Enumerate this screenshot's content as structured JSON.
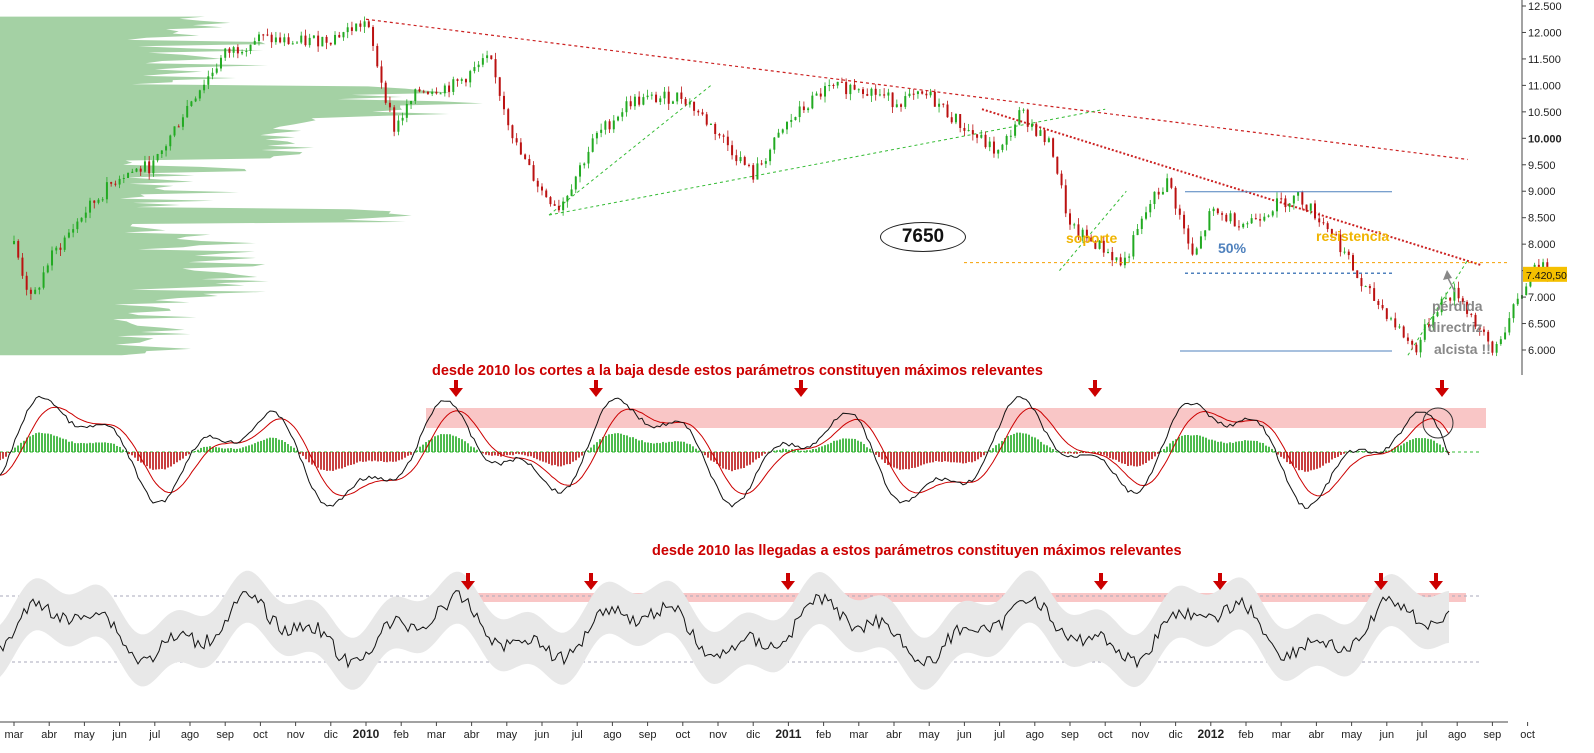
{
  "colors": {
    "price_up": "#22aa22",
    "price_down": "#bb1111",
    "volume_profile": "#9fcf9f",
    "trend_red": "#cc2222",
    "trend_green": "#33bb33",
    "support_orange": "#f5a000",
    "annotation_red": "#cc0000",
    "annotation_orange": "#f0b400",
    "annotation_blue": "#4f81bd",
    "annotation_gray": "#888888",
    "band_pink": "#f9c6c6",
    "osc_band_gray": "#e8e8e8",
    "last_price_box": "#f5c000"
  },
  "annotations": {
    "level_7650": "7650",
    "soporte": "soporte",
    "resistencia": "resistencia",
    "fib_50": "50%",
    "perdida_line1": "pérdida",
    "perdida_line2": "directriz",
    "perdida_line3": "alcista !!",
    "macd_note": "desde 2010 los cortes a la baja desde estos parámetros constituyen máximos relevantes",
    "rsi_note": "desde 2010 las llegadas a estos parámetros constituyen máximos relevantes"
  },
  "chart_data": [
    {
      "type": "candlestick",
      "panel": "price",
      "y_axis_ticks": [
        "12.500",
        "12.000",
        "11.500",
        "11.000",
        "10.500",
        "10.000",
        "9.500",
        "9.000",
        "8.500",
        "8.000",
        "7.500",
        "7.000",
        "6.500",
        "6.000"
      ],
      "y_tick_values": [
        12500,
        12000,
        11500,
        11000,
        10500,
        10000,
        9500,
        9000,
        8500,
        8000,
        7500,
        7000,
        6500,
        6000
      ],
      "highlight_tick": "10.000",
      "last_price_label": "7.420,50",
      "last_price": 7420.5,
      "support_level": 7650,
      "ylim": [
        5700,
        12700
      ],
      "x_axis_labels": [
        "mar",
        "abr",
        "may",
        "jun",
        "jul",
        "ago",
        "sep",
        "oct",
        "nov",
        "dic",
        "2010",
        "feb",
        "mar",
        "abr",
        "may",
        "jun",
        "jul",
        "ago",
        "sep",
        "oct",
        "nov",
        "dic",
        "2011",
        "feb",
        "mar",
        "abr",
        "may",
        "jun",
        "jul",
        "ago",
        "sep",
        "oct",
        "nov",
        "dic",
        "2012",
        "feb",
        "mar",
        "abr",
        "may",
        "jun",
        "jul",
        "ago",
        "sep",
        "oct"
      ],
      "year_labels": [
        "2010",
        "2011",
        "2012"
      ],
      "price_path_approx": [
        {
          "t": 0,
          "v": 8000
        },
        {
          "t": 0.5,
          "v": 6900
        },
        {
          "t": 1,
          "v": 7700
        },
        {
          "t": 2,
          "v": 8600
        },
        {
          "t": 3,
          "v": 9300
        },
        {
          "t": 4,
          "v": 9500
        },
        {
          "t": 5,
          "v": 10700
        },
        {
          "t": 6,
          "v": 11600
        },
        {
          "t": 7,
          "v": 11900
        },
        {
          "t": 8,
          "v": 11800
        },
        {
          "t": 9,
          "v": 11900
        },
        {
          "t": 10,
          "v": 12200
        },
        {
          "t": 10.8,
          "v": 10200
        },
        {
          "t": 11.5,
          "v": 10900
        },
        {
          "t": 12.5,
          "v": 11000
        },
        {
          "t": 13.5,
          "v": 11500
        },
        {
          "t": 14.3,
          "v": 9800
        },
        {
          "t": 15,
          "v": 9000
        },
        {
          "t": 15.5,
          "v": 8700
        },
        {
          "t": 16.5,
          "v": 10000
        },
        {
          "t": 17.5,
          "v": 10700
        },
        {
          "t": 19,
          "v": 10800
        },
        {
          "t": 20,
          "v": 10100
        },
        {
          "t": 21,
          "v": 9300
        },
        {
          "t": 22,
          "v": 10300
        },
        {
          "t": 23,
          "v": 10900
        },
        {
          "t": 24,
          "v": 11000
        },
        {
          "t": 25,
          "v": 10700
        },
        {
          "t": 26,
          "v": 10800
        },
        {
          "t": 27,
          "v": 10200
        },
        {
          "t": 28,
          "v": 9700
        },
        {
          "t": 28.6,
          "v": 10500
        },
        {
          "t": 29.5,
          "v": 9800
        },
        {
          "t": 30,
          "v": 8300
        },
        {
          "t": 31,
          "v": 7900
        },
        {
          "t": 31.5,
          "v": 7600
        },
        {
          "t": 32.3,
          "v": 8800
        },
        {
          "t": 32.8,
          "v": 9200
        },
        {
          "t": 33.5,
          "v": 7700
        },
        {
          "t": 34,
          "v": 8600
        },
        {
          "t": 35,
          "v": 8400
        },
        {
          "t": 36,
          "v": 8800
        },
        {
          "t": 36.5,
          "v": 8900
        },
        {
          "t": 37.5,
          "v": 8200
        },
        {
          "t": 38.3,
          "v": 7200
        },
        {
          "t": 39,
          "v": 6700
        },
        {
          "t": 39.8,
          "v": 6000
        },
        {
          "t": 40.5,
          "v": 6900
        },
        {
          "t": 41,
          "v": 7100
        },
        {
          "t": 41.7,
          "v": 6300
        },
        {
          "t": 42,
          "v": 5950
        },
        {
          "t": 42.8,
          "v": 7000
        },
        {
          "t": 43.2,
          "v": 7700
        },
        {
          "t": 43.6,
          "v": 7420
        }
      ]
    },
    {
      "type": "line",
      "panel": "macd",
      "series": [
        "macd",
        "signal",
        "histogram"
      ]
    },
    {
      "type": "line",
      "panel": "rsi",
      "series": [
        "oscillator",
        "band"
      ]
    }
  ]
}
